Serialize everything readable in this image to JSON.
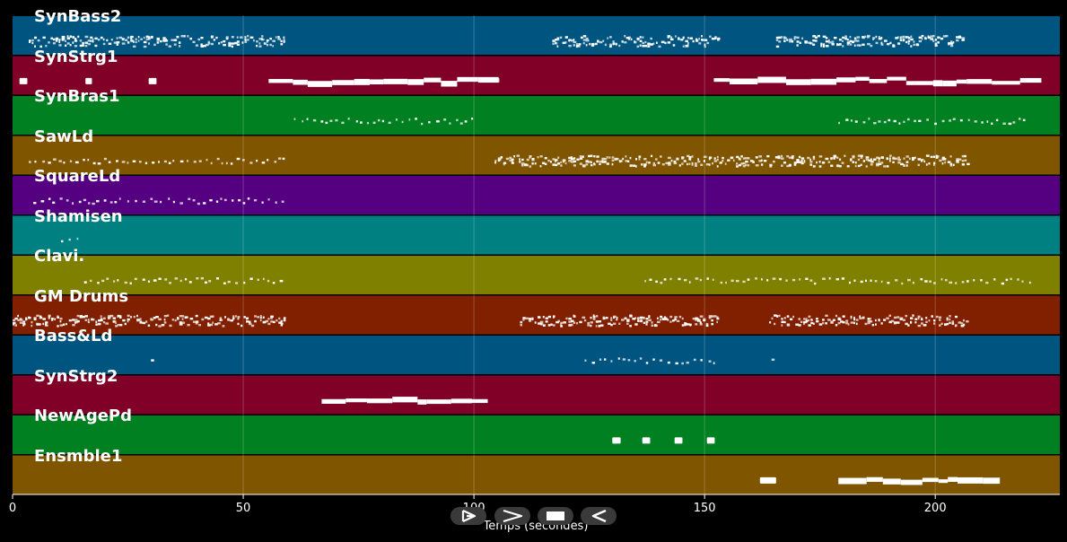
{
  "tracks": [
    {
      "name": "SynBass2",
      "color": "#005580"
    },
    {
      "name": "SynStrg1",
      "color": "#800028"
    },
    {
      "name": "SynBras1",
      "color": "#008020"
    },
    {
      "name": "SawLd",
      "color": "#805500"
    },
    {
      "name": "SquareLd",
      "color": "#550080"
    },
    {
      "name": "Shamisen",
      "color": "#008080"
    },
    {
      "name": "Clavi.",
      "color": "#808000"
    },
    {
      "name": "GM Drums",
      "color": "#802000"
    },
    {
      "name": "Bass&Ld",
      "color": "#005580"
    },
    {
      "name": "SynStrg2",
      "color": "#800028"
    },
    {
      "name": "NewAgePd",
      "color": "#008020"
    },
    {
      "name": "Ensmble1",
      "color": "#805500"
    }
  ],
  "axis": {
    "label": "Temps (secondes)",
    "ticks": [
      {
        "value": 0,
        "label": "0"
      },
      {
        "value": 50,
        "label": "50"
      },
      {
        "value": 100,
        "label": "100"
      },
      {
        "value": 150,
        "label": "150"
      },
      {
        "value": 200,
        "label": "200"
      }
    ],
    "range": [
      0,
      227
    ]
  },
  "controls": [
    {
      "name": "play-button",
      "icon": "play-icon"
    },
    {
      "name": "forward-button",
      "icon": "chevron-right-icon"
    },
    {
      "name": "stop-button",
      "icon": "stop-icon"
    },
    {
      "name": "back-button",
      "icon": "chevron-left-icon"
    }
  ],
  "chart_data": {
    "type": "piano-roll",
    "xlabel": "Temps (secondes)",
    "xlim": [
      0,
      227
    ],
    "grid": true,
    "segments": [
      {
        "track": "SynBass2",
        "start": 3.5,
        "end": 59,
        "style": "dense"
      },
      {
        "track": "SynBass2",
        "start": 117,
        "end": 153,
        "style": "dense"
      },
      {
        "track": "SynBass2",
        "start": 165.5,
        "end": 206,
        "style": "dense"
      },
      {
        "track": "SynStrg1",
        "start": 1.5,
        "end": 3.2,
        "style": "block"
      },
      {
        "track": "SynStrg1",
        "start": 15.8,
        "end": 17.2,
        "style": "block"
      },
      {
        "track": "SynStrg1",
        "start": 29.5,
        "end": 31.2,
        "style": "block"
      },
      {
        "track": "SynStrg1",
        "start": 55.5,
        "end": 105.5,
        "style": "long"
      },
      {
        "track": "SynStrg1",
        "start": 152,
        "end": 223,
        "style": "long"
      },
      {
        "track": "SynBras1",
        "start": 61,
        "end": 100,
        "style": "sparse"
      },
      {
        "track": "SynBras1",
        "start": 179,
        "end": 220,
        "style": "sparse"
      },
      {
        "track": "SawLd",
        "start": 3.5,
        "end": 59,
        "style": "sparse"
      },
      {
        "track": "SawLd",
        "start": 104.5,
        "end": 207,
        "style": "dense"
      },
      {
        "track": "SquareLd",
        "start": 4.5,
        "end": 59,
        "style": "sparse"
      },
      {
        "track": "Shamisen",
        "start": 10.5,
        "end": 15.5,
        "style": "sparse"
      },
      {
        "track": "Clavi.",
        "start": 15.5,
        "end": 59,
        "style": "sparse"
      },
      {
        "track": "Clavi.",
        "start": 137,
        "end": 221,
        "style": "sparse"
      },
      {
        "track": "GM Drums",
        "start": 0,
        "end": 59,
        "style": "dense"
      },
      {
        "track": "GM Drums",
        "start": 110,
        "end": 153,
        "style": "dense"
      },
      {
        "track": "GM Drums",
        "start": 164,
        "end": 207,
        "style": "dense"
      },
      {
        "track": "Bass&Ld",
        "start": 30,
        "end": 31,
        "style": "sparse"
      },
      {
        "track": "Bass&Ld",
        "start": 124,
        "end": 152,
        "style": "sparse"
      },
      {
        "track": "Bass&Ld",
        "start": 164.5,
        "end": 165.5,
        "style": "sparse"
      },
      {
        "track": "SynStrg2",
        "start": 67,
        "end": 103,
        "style": "long"
      },
      {
        "track": "NewAgePd",
        "start": 130,
        "end": 131.8,
        "style": "block"
      },
      {
        "track": "NewAgePd",
        "start": 136.5,
        "end": 138.2,
        "style": "block"
      },
      {
        "track": "NewAgePd",
        "start": 143.5,
        "end": 145.2,
        "style": "block"
      },
      {
        "track": "NewAgePd",
        "start": 150.5,
        "end": 152.2,
        "style": "block"
      },
      {
        "track": "Ensmble1",
        "start": 162,
        "end": 165.5,
        "style": "block"
      },
      {
        "track": "Ensmble1",
        "start": 179,
        "end": 214,
        "style": "long"
      }
    ]
  }
}
